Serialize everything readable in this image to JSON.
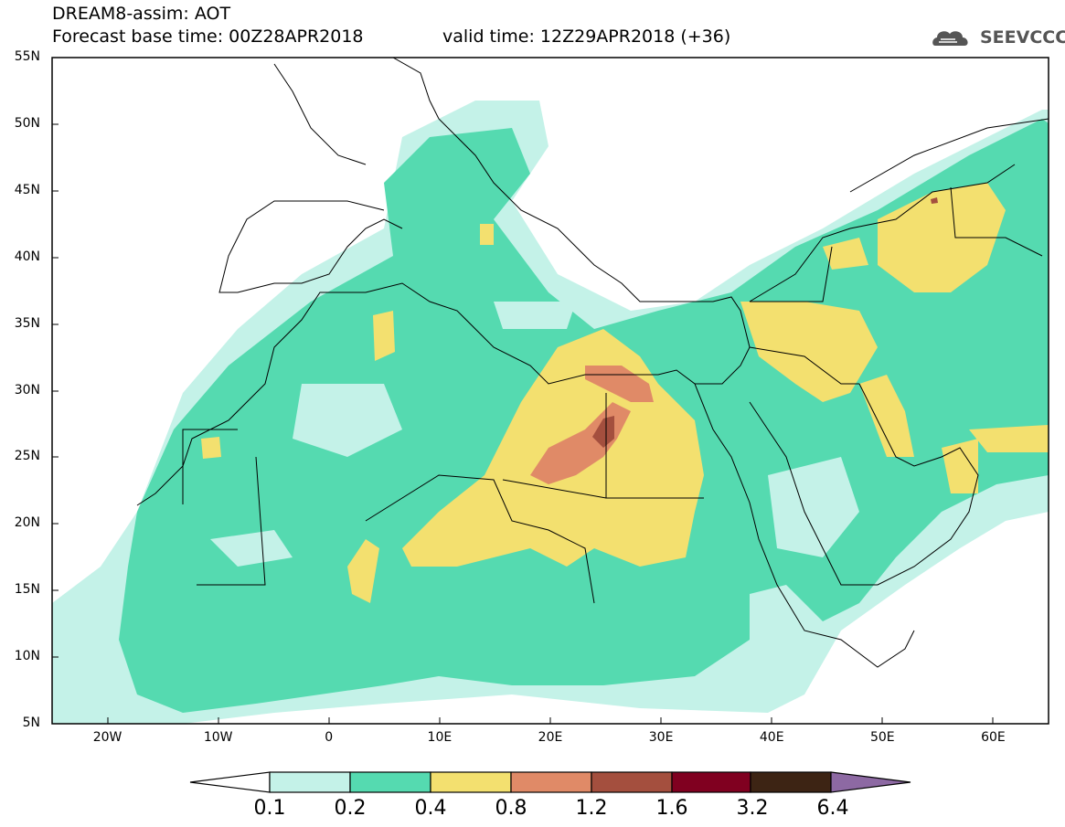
{
  "title": {
    "line1": "DREAM8-assim: AOT",
    "line2": "Forecast base time: 00Z28APR2018",
    "valid": "valid time: 12Z29APR2018 (+36)"
  },
  "logo": {
    "text": "SEEVCCC",
    "icon": "cloud-icon"
  },
  "map": {
    "lat_labels": [
      "55N",
      "50N",
      "45N",
      "40N",
      "35N",
      "30N",
      "25N",
      "20N",
      "15N",
      "10N",
      "5N"
    ],
    "lon_labels": [
      "20W",
      "10W",
      "0",
      "10E",
      "20E",
      "30E",
      "40E",
      "50E",
      "60E"
    ],
    "extent": {
      "lon_min": -25,
      "lon_max": 65,
      "lat_min": 5,
      "lat_max": 55
    }
  },
  "colorbar": {
    "levels": [
      "0.1",
      "0.2",
      "0.4",
      "0.8",
      "1.2",
      "1.6",
      "3.2",
      "6.4"
    ],
    "colors": [
      "#ffffff",
      "#c4f2e8",
      "#55dab0",
      "#f3e06f",
      "#e08a67",
      "#a44f3e",
      "#800020",
      "#3d2414",
      "#8d69a3"
    ]
  }
}
